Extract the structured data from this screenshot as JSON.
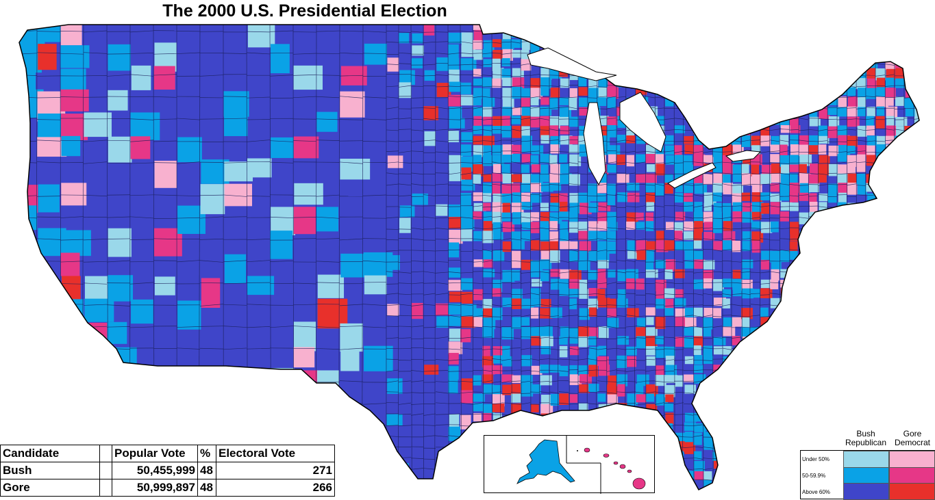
{
  "title": "The 2000 U.S. Presidential Election",
  "colors": {
    "background": "#ffffff",
    "bush_under_50": "#9ad8ea",
    "bush_50_60": "#0aa2e6",
    "bush_above_60": "#3f45c9",
    "gore_under_50": "#f8b1cf",
    "gore_50_60": "#e63787",
    "gore_above_60": "#e8302b",
    "alaska": "#0aa2e6",
    "hawaii": "#e63787"
  },
  "legend": {
    "headers": [
      {
        "line1": "Bush",
        "line2": "Republican"
      },
      {
        "line1": "Gore",
        "line2": "Democrat"
      }
    ],
    "rows": [
      "Under 50%",
      "50-59.9%",
      "Above 60%"
    ]
  },
  "results_table": {
    "headers": [
      "Candidate",
      "",
      "Popular Vote",
      "%",
      "Electoral Vote"
    ],
    "rows": [
      {
        "candidate": "Bush",
        "popular_vote": "50,455,999",
        "percent": "48",
        "electoral_vote": "271"
      },
      {
        "candidate": "Gore",
        "popular_vote": "50,999,897",
        "percent": "48",
        "electoral_vote": "266"
      }
    ]
  }
}
